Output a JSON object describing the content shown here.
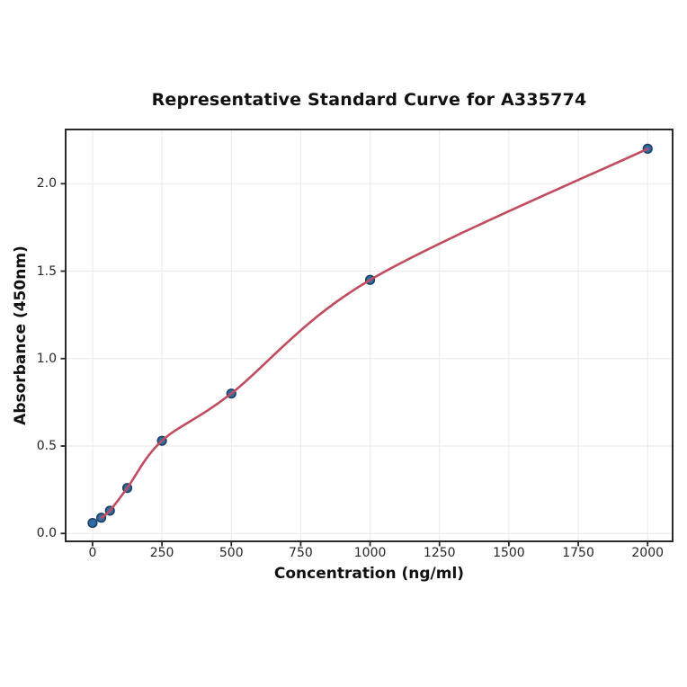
{
  "figure": {
    "background": "#ffffff"
  },
  "chart_data": {
    "type": "scatter",
    "title": "Representative Standard Curve for A335774",
    "xlabel": "Concentration (ng/ml)",
    "ylabel": "Absorbance (450nm)",
    "series": [
      {
        "name": "standards",
        "x": [
          0,
          31.25,
          62.5,
          125,
          250,
          500,
          1000,
          2000
        ],
        "y": [
          0.06,
          0.09,
          0.13,
          0.26,
          0.53,
          0.8,
          1.45,
          2.2
        ]
      }
    ],
    "fit_curve": {
      "start_index": 1
    },
    "x_ticks": [
      0,
      250,
      500,
      750,
      1000,
      1250,
      1500,
      1750,
      2000
    ],
    "x_tick_labels": [
      "0",
      "250",
      "500",
      "750",
      "1000",
      "1250",
      "1500",
      "1750",
      "2000"
    ],
    "y_ticks": [
      0,
      0.5,
      1,
      1.5,
      2
    ],
    "y_tick_labels": [
      "0.0",
      "0.5",
      "1.0",
      "1.5",
      "2.0"
    ],
    "xlim": [
      -97,
      2090
    ],
    "ylim": [
      -0.045,
      2.31
    ],
    "grid": true,
    "legend": "none",
    "colors": {
      "marker_fill": "#2e6da4",
      "marker_edge": "#1b3e61",
      "fit_line": "#c04d5f",
      "grid": "#ececec",
      "spine": "#2a2a2a",
      "tick": "#262626",
      "text": "#111111"
    }
  }
}
